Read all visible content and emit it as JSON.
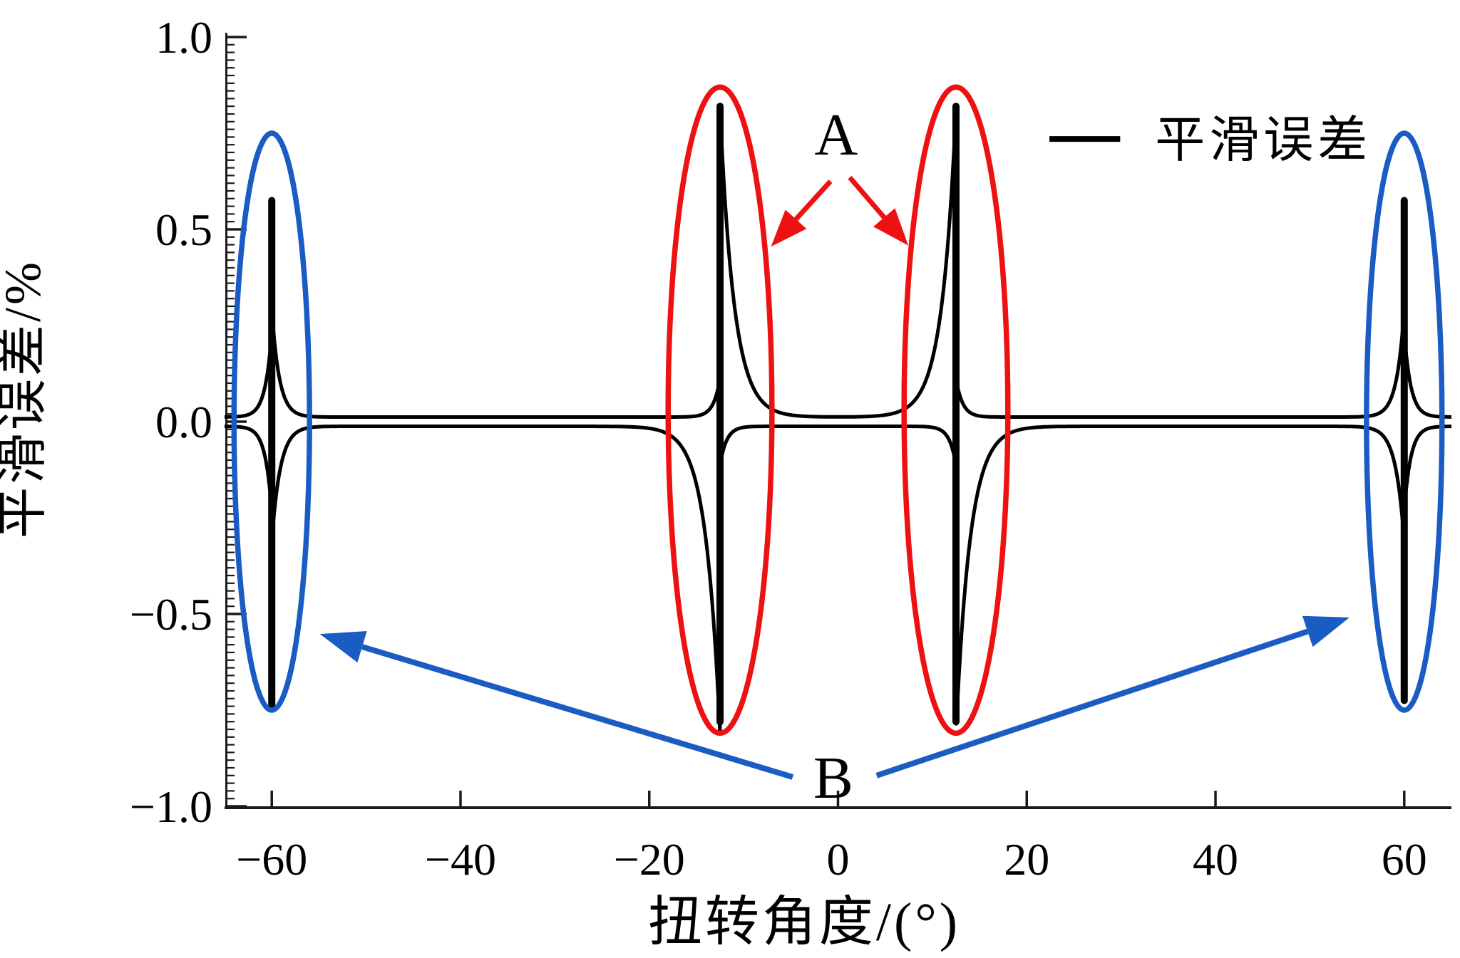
{
  "chart_data": {
    "type": "line",
    "title": "",
    "xlabel": "扭转角度/(°)",
    "ylabel": "平滑误差/%",
    "xlim": [
      -65,
      65
    ],
    "ylim": [
      -1.0,
      1.0
    ],
    "grid": false,
    "x_ticks": [
      {
        "v": -60,
        "label": "−60"
      },
      {
        "v": -40,
        "label": "−40"
      },
      {
        "v": -20,
        "label": "−20"
      },
      {
        "v": 0,
        "label": "0"
      },
      {
        "v": 20,
        "label": "20"
      },
      {
        "v": 40,
        "label": "40"
      },
      {
        "v": 60,
        "label": "60"
      }
    ],
    "y_ticks": [
      {
        "v": 1.0,
        "label": "1.0"
      },
      {
        "v": 0.5,
        "label": "0.5"
      },
      {
        "v": 0.0,
        "label": "0.0"
      },
      {
        "v": -0.5,
        "label": "−0.5"
      },
      {
        "v": -1.0,
        "label": "−1.0"
      }
    ],
    "y_minor_tick_step": 0.02,
    "legend": {
      "position": "top-right",
      "entries": [
        {
          "label": "平滑误差",
          "color": "#000000",
          "marker": "line"
        }
      ],
      "sample_line": {
        "x1": 22.4,
        "x2": 29.9,
        "y": 0.735,
        "text_x": 33.6
      }
    },
    "series": [
      {
        "name": "平滑误差",
        "color": "#000000",
        "baseline_value": 0.0,
        "baseline_offset": 0.012,
        "spike_positions_deg": [
          -60,
          -12.5,
          12.5,
          60
        ],
        "spikes": [
          {
            "x": -60,
            "top": 0.575,
            "bottom": -0.74,
            "flares": {
              "luA": 0.22,
              "luW": 0.7,
              "ruA": 0.28,
              "ruW": 0.8,
              "ldA": 0.22,
              "ldW": 0.7,
              "rdA": 0.3,
              "rdW": 0.9
            }
          },
          {
            "x": -12.5,
            "top": 0.82,
            "bottom": -0.78,
            "flares": {
              "luA": 0.1,
              "luW": 0.7,
              "ruA": 0.8,
              "ruW": 1.5,
              "ldA": 0.8,
              "ldW": 1.5,
              "rdA": 0.1,
              "rdW": 0.7
            }
          },
          {
            "x": 12.5,
            "top": 0.82,
            "bottom": -0.78,
            "flares": {
              "luA": 0.8,
              "luW": 1.5,
              "ruA": 0.1,
              "ruW": 0.7,
              "ldA": 0.1,
              "ldW": 0.7,
              "rdA": 0.8,
              "rdW": 1.5
            }
          },
          {
            "x": 60,
            "top": 0.575,
            "bottom": -0.725,
            "flares": {
              "luA": 0.28,
              "luW": 0.8,
              "ruA": 0.22,
              "ruW": 0.7,
              "ldA": 0.3,
              "ldW": 0.9,
              "rdA": 0.22,
              "rdW": 0.7
            }
          }
        ]
      }
    ],
    "ellipses": [
      {
        "id": "blue-left",
        "color": "#1a5cc4",
        "cx": -60,
        "cy": 0.0,
        "rx": 4.0,
        "ry": 0.75
      },
      {
        "id": "blue-right",
        "color": "#1a5cc4",
        "cx": 60,
        "cy": 0.0,
        "rx": 4.0,
        "ry": 0.75
      },
      {
        "id": "red-left",
        "color": "#ee1111",
        "cx": -12.5,
        "cy": 0.03,
        "rx": 5.5,
        "ry": 0.84
      },
      {
        "id": "red-right",
        "color": "#ee1111",
        "cx": 12.5,
        "cy": 0.03,
        "rx": 5.5,
        "ry": 0.84
      }
    ],
    "annotations": {
      "A": {
        "label": "A",
        "x": -0.2,
        "y": 0.75
      },
      "B": {
        "label": "B",
        "x": -0.5,
        "y": -0.922
      },
      "arrows": [
        {
          "group": "A",
          "color": "#ee1111",
          "from": [
            -0.8,
            0.625
          ],
          "to": [
            -7.1,
            0.455
          ],
          "head_len": 52,
          "head_w": 20,
          "shaft": 7
        },
        {
          "group": "A",
          "color": "#ee1111",
          "from": [
            1.25,
            0.635
          ],
          "to": [
            7.45,
            0.458
          ],
          "head_len": 52,
          "head_w": 20,
          "shaft": 7
        },
        {
          "group": "B",
          "color": "#1a5cc4",
          "from": [
            -4.8,
            -0.924
          ],
          "to": [
            -54.9,
            -0.552
          ],
          "head_len": 62,
          "head_w": 23,
          "shaft": 8
        },
        {
          "group": "B",
          "color": "#1a5cc4",
          "from": [
            4.1,
            -0.92
          ],
          "to": [
            54.2,
            -0.509
          ],
          "head_len": 62,
          "head_w": 23,
          "shaft": 8
        }
      ]
    },
    "colors": {
      "curve": "#000000",
      "highlight_red": "#ee1111",
      "highlight_blue": "#1a5cc4",
      "axis": "#1a1a1a"
    }
  }
}
